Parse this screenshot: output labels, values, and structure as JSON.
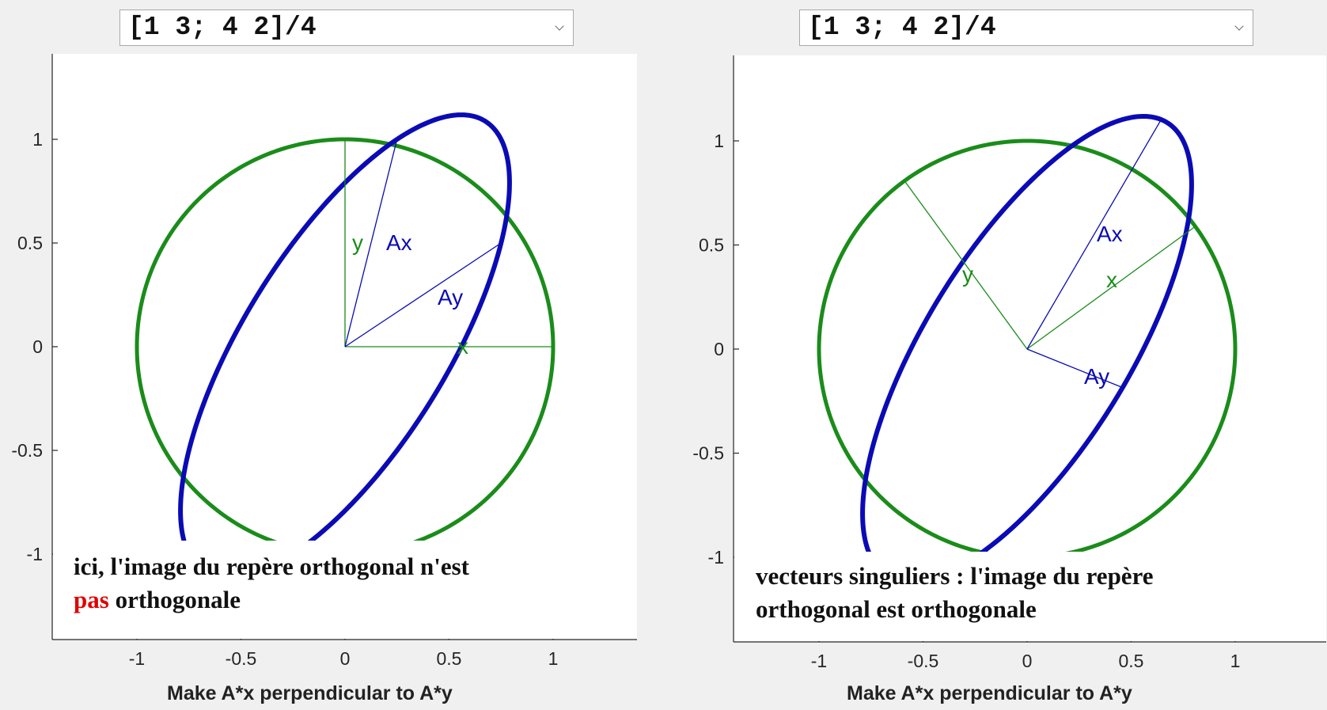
{
  "panels": [
    {
      "dropdown_value": "[1 3; 4 2]/4",
      "annotation_line1": "ici, l'image du repère orthogonal n'est",
      "annotation_line2_highlight": "pas",
      "annotation_line2_rest": " orthogonale",
      "xlabel": "Make A*x perpendicular to A*y",
      "x_ticks": [
        "-1",
        "-0.5",
        "0",
        "0.5",
        "1"
      ],
      "y_ticks": [
        "1",
        "0.5",
        "0",
        "-0.5",
        "-1"
      ],
      "vector_labels": {
        "x": "x",
        "y": "y",
        "Ax": "Ax",
        "Ay": "Ay"
      }
    },
    {
      "dropdown_value": "[1 3; 4 2]/4",
      "annotation_line1": "vecteurs singuliers : l'image du repère",
      "annotation_line2": "orthogonal est orthogonale",
      "xlabel": "Make A*x perpendicular to A*y",
      "x_ticks": [
        "-1",
        "-0.5",
        "0",
        "0.5",
        "1"
      ],
      "y_ticks": [
        "1",
        "0.5",
        "0",
        "-0.5",
        "-1"
      ],
      "vector_labels": {
        "x": "x",
        "y": "y",
        "Ax": "Ax",
        "Ay": "Ay"
      }
    }
  ],
  "chart_data": [
    {
      "type": "line",
      "matrix": [
        [
          0.25,
          0.75
        ],
        [
          1.0,
          0.5
        ]
      ],
      "xlim": [
        -1.4,
        1.4
      ],
      "ylim": [
        -1.4,
        1.4
      ],
      "x_ticks": [
        -1,
        -0.5,
        0,
        0.5,
        1
      ],
      "y_ticks": [
        -1,
        -0.5,
        0,
        0.5,
        1
      ],
      "xlabel": "Make A*x perpendicular to A*y",
      "series": [
        {
          "role": "unit-circle",
          "color": "#1a8c1a"
        },
        {
          "role": "image-ellipse",
          "color": "#0b0bb5"
        }
      ],
      "vectors": {
        "x": [
          1,
          0
        ],
        "y": [
          0,
          1
        ],
        "Ax": [
          0.25,
          1.0
        ],
        "Ay": [
          0.75,
          0.5
        ]
      }
    },
    {
      "type": "line",
      "matrix": [
        [
          0.25,
          0.75
        ],
        [
          1.0,
          0.5
        ]
      ],
      "xlim": [
        -1.4,
        1.4
      ],
      "ylim": [
        -1.4,
        1.4
      ],
      "x_ticks": [
        -1,
        -0.5,
        0,
        0.5,
        1
      ],
      "y_ticks": [
        -1,
        -0.5,
        0,
        0.5,
        1
      ],
      "xlabel": "Make A*x perpendicular to A*y",
      "series": [
        {
          "role": "unit-circle",
          "color": "#1a8c1a"
        },
        {
          "role": "image-ellipse",
          "color": "#0b0bb5"
        }
      ],
      "vectors": {
        "x": [
          0.808,
          0.589
        ],
        "y": [
          -0.589,
          0.808
        ],
        "Ax": [
          0.644,
          1.102
        ],
        "Ay": [
          0.459,
          -0.185
        ]
      }
    }
  ]
}
